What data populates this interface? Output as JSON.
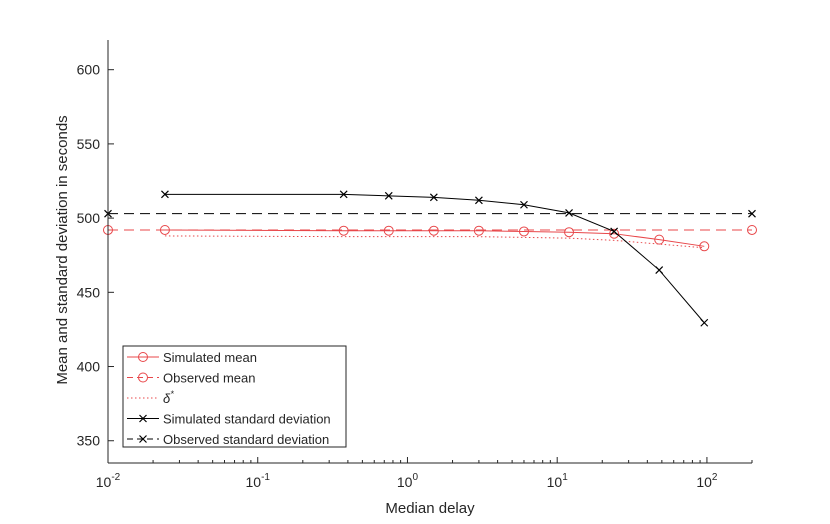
{
  "chart_data": {
    "type": "line",
    "title": "",
    "xlabel": "Median delay",
    "ylabel": "Mean and standard deviation in seconds",
    "xscale": "log",
    "xlim": [
      0.01,
      200
    ],
    "ylim": [
      335,
      620
    ],
    "grid": false,
    "legend_location": "bottom-left",
    "x_ticks": [
      0.01,
      0.1,
      1,
      10,
      100
    ],
    "x_tick_labels": [
      {
        "base": "10",
        "exp": "-2"
      },
      {
        "base": "10",
        "exp": "-1"
      },
      {
        "base": "10",
        "exp": "0"
      },
      {
        "base": "10",
        "exp": "1"
      },
      {
        "base": "10",
        "exp": "2"
      }
    ],
    "y_ticks": [
      350,
      400,
      450,
      500,
      550,
      600
    ],
    "y_tick_labels": [
      "350",
      "400",
      "450",
      "500",
      "550",
      "600"
    ],
    "series": [
      {
        "name": "Simulated mean",
        "color": "#e8474a",
        "dash": "solid",
        "marker": "circle",
        "x": [
          0.024,
          0.375,
          0.75,
          1.5,
          3,
          6,
          12,
          24,
          48,
          96
        ],
        "y": [
          492,
          491.5,
          491.5,
          491.5,
          491.5,
          491,
          490.5,
          489.5,
          485.5,
          481
        ]
      },
      {
        "name": "Observed mean",
        "color": "#e8474a",
        "dash": "dash",
        "marker": "circle",
        "x": [
          0.01,
          200
        ],
        "y": [
          492,
          492
        ]
      },
      {
        "name": "δ*",
        "color": "#e8474a",
        "dash": "dot",
        "marker": "none",
        "x": [
          0.024,
          0.375,
          0.75,
          1.5,
          3,
          6,
          12,
          24,
          48,
          96
        ],
        "y": [
          488,
          487.5,
          487.5,
          487.5,
          487.5,
          487,
          486.5,
          485,
          482.5,
          480
        ]
      },
      {
        "name": "Simulated standard deviation",
        "color": "#000000",
        "dash": "solid",
        "marker": "x",
        "x": [
          0.024,
          0.375,
          0.75,
          1.5,
          3,
          6,
          12,
          24,
          48,
          96
        ],
        "y": [
          516,
          516,
          515,
          514,
          512,
          509,
          503.5,
          491,
          465,
          429.5
        ]
      },
      {
        "name": "Observed standard deviation",
        "color": "#000000",
        "dash": "dash",
        "marker": "x",
        "x": [
          0.01,
          200
        ],
        "y": [
          503,
          503
        ]
      }
    ]
  }
}
